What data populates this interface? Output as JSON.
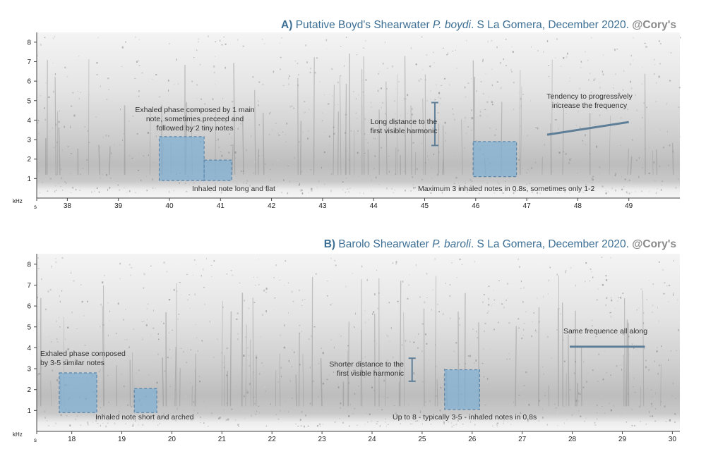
{
  "colors": {
    "title_blue": "#3d6f94",
    "owner_grey": "#8a8a8a",
    "highlight_fill": "#7fb0d4",
    "highlight_border": "#5b86aa",
    "marker_line": "#5f7f98"
  },
  "chart_data": [
    {
      "type": "heatmap",
      "title": {
        "label": "A)",
        "prefix": "Putative Boyd's Shearwater",
        "species": "P. boydi",
        "suffix": ". S La Gomera, December 2020.",
        "owner": "@Cory's"
      },
      "ylabel": "kHz",
      "xlabel": "s",
      "ylim": [
        0,
        8.5
      ],
      "xlim": [
        37.4,
        50.0
      ],
      "yticks": [
        "1",
        "2",
        "3",
        "4",
        "5",
        "6",
        "7",
        "8"
      ],
      "yvals": [
        1,
        2,
        3,
        4,
        5,
        6,
        7,
        8
      ],
      "xticks": [
        "38",
        "39",
        "40",
        "41",
        "42",
        "43",
        "44",
        "45",
        "46",
        "47",
        "48",
        "49"
      ],
      "xvals": [
        38,
        39,
        40,
        41,
        42,
        43,
        44,
        45,
        46,
        47,
        48,
        49
      ],
      "highlights": [
        {
          "name": "exhaled-phase-box",
          "x": [
            39.8,
            40.68
          ],
          "y": [
            0.9,
            3.15
          ]
        },
        {
          "name": "inhaled-note-box",
          "x": [
            40.68,
            41.22
          ],
          "y": [
            0.9,
            1.95
          ]
        },
        {
          "name": "inhaled-notes-box",
          "x": [
            45.95,
            46.8
          ],
          "y": [
            1.1,
            2.9
          ]
        }
      ],
      "markers": [
        {
          "name": "harmonic-distance-marker",
          "kind": "bracket",
          "x": 45.2,
          "y": [
            2.7,
            4.9
          ]
        },
        {
          "name": "frequency-trend-line",
          "kind": "line",
          "x": [
            47.4,
            49.0
          ],
          "y": [
            3.25,
            3.9
          ]
        }
      ],
      "annotations": [
        {
          "name": "exhaled-phase-note",
          "text": "Exhaled phase composed by 1 main\nnote, sometimes preceed and\nfollowed by 2 tiny notes"
        },
        {
          "name": "inhaled-note-note",
          "text": "Inhaled note long and flat"
        },
        {
          "name": "harmonic-distance-note",
          "text": "Long distance to the\nfirst visible harmonic"
        },
        {
          "name": "frequency-trend-note",
          "text": "Tendency to progressively\nincrease the frequency"
        },
        {
          "name": "inhaled-count-note",
          "text": "Maximum 3 inhaled notes in 0.8s, sometimes only 1-2"
        }
      ]
    },
    {
      "type": "heatmap",
      "title": {
        "label": "B)",
        "prefix": "Barolo Shearwater",
        "species": "P. baroli",
        "suffix": ". S La Gomera, December 2020.",
        "owner": "@Cory's"
      },
      "ylabel": "kHz",
      "xlabel": "s",
      "ylim": [
        0,
        8.5
      ],
      "xlim": [
        17.3,
        30.15
      ],
      "yticks": [
        "1",
        "2",
        "3",
        "4",
        "5",
        "6",
        "7",
        "8"
      ],
      "yvals": [
        1,
        2,
        3,
        4,
        5,
        6,
        7,
        8
      ],
      "xticks": [
        "18",
        "19",
        "20",
        "21",
        "22",
        "23",
        "24",
        "25",
        "26",
        "27",
        "28",
        "29",
        "30"
      ],
      "xvals": [
        18,
        19,
        20,
        21,
        22,
        23,
        24,
        25,
        26,
        27,
        28,
        29,
        30
      ],
      "highlights": [
        {
          "name": "exhaled-phase-box",
          "x": [
            17.75,
            18.5
          ],
          "y": [
            0.9,
            2.8
          ]
        },
        {
          "name": "inhaled-note-box",
          "x": [
            19.25,
            19.7
          ],
          "y": [
            0.9,
            2.05
          ]
        },
        {
          "name": "inhaled-notes-box",
          "x": [
            25.45,
            26.15
          ],
          "y": [
            1.05,
            2.95
          ]
        }
      ],
      "markers": [
        {
          "name": "harmonic-distance-marker",
          "kind": "bracket",
          "x": 24.8,
          "y": [
            2.4,
            3.5
          ]
        },
        {
          "name": "same-frequency-line",
          "kind": "line",
          "x": [
            27.95,
            29.45
          ],
          "y": [
            4.05,
            4.05
          ]
        }
      ],
      "annotations": [
        {
          "name": "exhaled-phase-note",
          "text": "Exhaled phase composed\nby 3-5 similar notes"
        },
        {
          "name": "inhaled-note-note",
          "text": "Inhaled note short and arched"
        },
        {
          "name": "harmonic-distance-note",
          "text": "Shorter distance to the\nfirst visible harmonic"
        },
        {
          "name": "same-frequency-note",
          "text": "Same frequence all along"
        },
        {
          "name": "inhaled-count-note",
          "text": "Up to 8 - typically 3-5 - inhaled notes in 0.8s"
        }
      ]
    }
  ]
}
